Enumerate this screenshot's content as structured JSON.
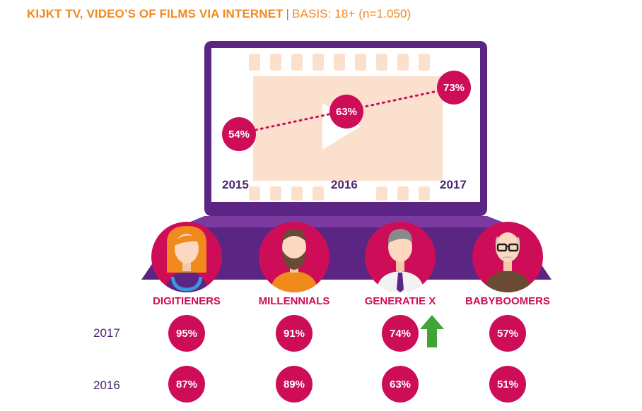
{
  "title": {
    "main": "KIJKT TV, VIDEO’S OF FILMS VIA INTERNET",
    "separator": "|",
    "basis": "BASIS: 18+ (n=1.050)"
  },
  "colors": {
    "title": "#f08a1c",
    "accent": "#cd0d57",
    "laptop": "#5b2583",
    "up_arrow": "#3fa535"
  },
  "chart_data": [
    {
      "type": "line",
      "x": [
        "2015",
        "2016",
        "2017"
      ],
      "series": [
        {
          "values": [
            54,
            63,
            73
          ]
        }
      ],
      "labels": [
        "54%",
        "63%",
        "73%"
      ],
      "unit": "%"
    },
    {
      "type": "table",
      "categories": [
        "DIGITIENERS",
        "MILLENNIALS",
        "GENERATIE X",
        "BABYBOOMERS"
      ],
      "series": [
        {
          "name": "2017",
          "values": [
            95,
            91,
            74,
            57
          ],
          "labels": [
            "95%",
            "91%",
            "74%",
            "57%"
          ]
        },
        {
          "name": "2016",
          "values": [
            87,
            89,
            63,
            51
          ],
          "labels": [
            "87%",
            "89%",
            "63%",
            "51%"
          ]
        }
      ],
      "annotations": [
        {
          "category": "GENERATIE X",
          "icon": "up-arrow-icon"
        }
      ]
    }
  ]
}
